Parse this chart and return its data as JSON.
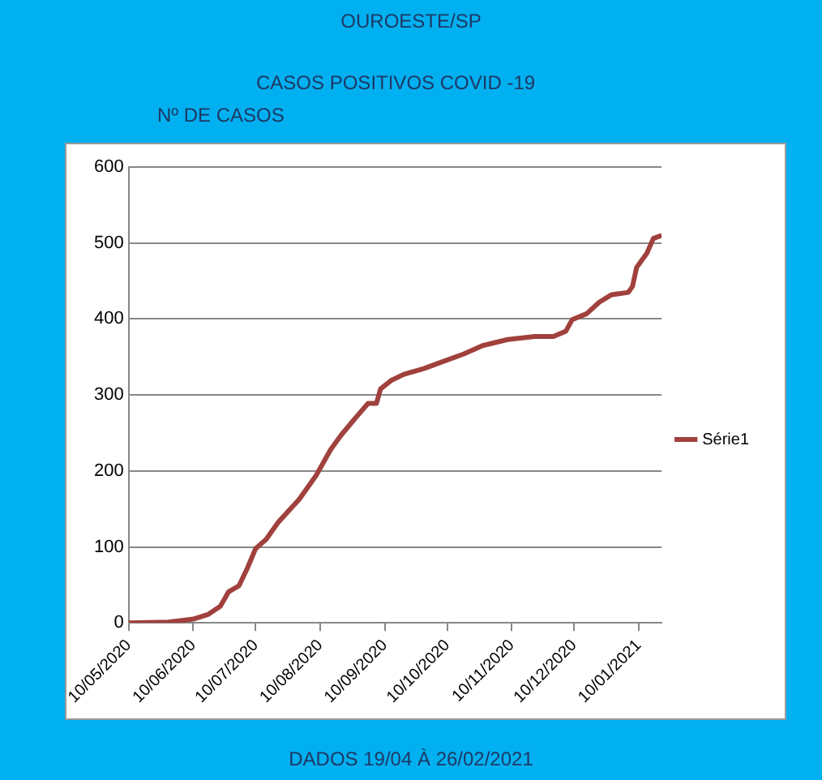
{
  "chart_data": {
    "type": "line",
    "title": "OUROESTE/SP",
    "subtitle": "CASOS POSITIVOS COVID -19",
    "ylabel": "Nº DE CASOS",
    "annotations": [
      "DADOS 19/04 À 26/02/2021"
    ],
    "x": [
      "2020-05-10",
      "2020-05-29",
      "2020-06-10",
      "2020-06-17",
      "2020-06-23",
      "2020-06-27",
      "2020-07-02",
      "2020-07-06",
      "2020-07-10",
      "2020-07-15",
      "2020-07-21",
      "2020-07-31",
      "2020-08-08",
      "2020-08-15",
      "2020-08-20",
      "2020-08-27",
      "2020-09-02",
      "2020-09-06",
      "2020-09-08",
      "2020-09-13",
      "2020-09-19",
      "2020-09-29",
      "2020-10-08",
      "2020-10-18",
      "2020-10-27",
      "2020-11-08",
      "2020-11-21",
      "2020-11-30",
      "2020-12-06",
      "2020-12-09",
      "2020-12-16",
      "2020-12-22",
      "2020-12-28",
      "2021-01-05",
      "2021-01-07",
      "2021-01-09",
      "2021-01-14",
      "2021-01-17",
      "2021-01-21"
    ],
    "series": [
      {
        "name": "Série1",
        "color": "#a0413d",
        "values": [
          0,
          1,
          5,
          11,
          22,
          41,
          49,
          72,
          98,
          110,
          133,
          163,
          194,
          228,
          247,
          270,
          289,
          289,
          308,
          319,
          327,
          335,
          344,
          354,
          365,
          373,
          377,
          377,
          384,
          399,
          407,
          422,
          432,
          435,
          443,
          468,
          487,
          506,
          510
        ]
      }
    ],
    "xlim": [
      "2020-05-10",
      "2021-01-21"
    ],
    "xticks": [
      {
        "value": "2020-05-10",
        "label": "10/05/2020"
      },
      {
        "value": "2020-06-10",
        "label": "10/06/2020"
      },
      {
        "value": "2020-07-10",
        "label": "10/07/2020"
      },
      {
        "value": "2020-08-10",
        "label": "10/08/2020"
      },
      {
        "value": "2020-09-10",
        "label": "10/09/2020"
      },
      {
        "value": "2020-10-10",
        "label": "10/10/2020"
      },
      {
        "value": "2020-11-10",
        "label": "10/11/2020"
      },
      {
        "value": "2020-12-10",
        "label": "10/12/2020"
      },
      {
        "value": "2021-01-10",
        "label": "10/01/2021"
      }
    ],
    "ylim": [
      0,
      600
    ],
    "yticks": [
      0,
      100,
      200,
      300,
      400,
      500,
      600
    ],
    "grid": "y",
    "legend": "right",
    "marker": "none",
    "line_style": "solid"
  }
}
